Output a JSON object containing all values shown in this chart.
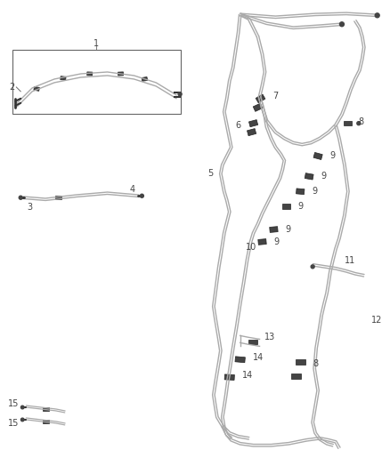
{
  "bg_color": "#ffffff",
  "tube_color": "#aaaaaa",
  "clip_color": "#444444",
  "label_color": "#444444",
  "box_color": "#666666",
  "lw": 1.0,
  "figsize": [
    4.38,
    5.33
  ],
  "dpi": 100
}
